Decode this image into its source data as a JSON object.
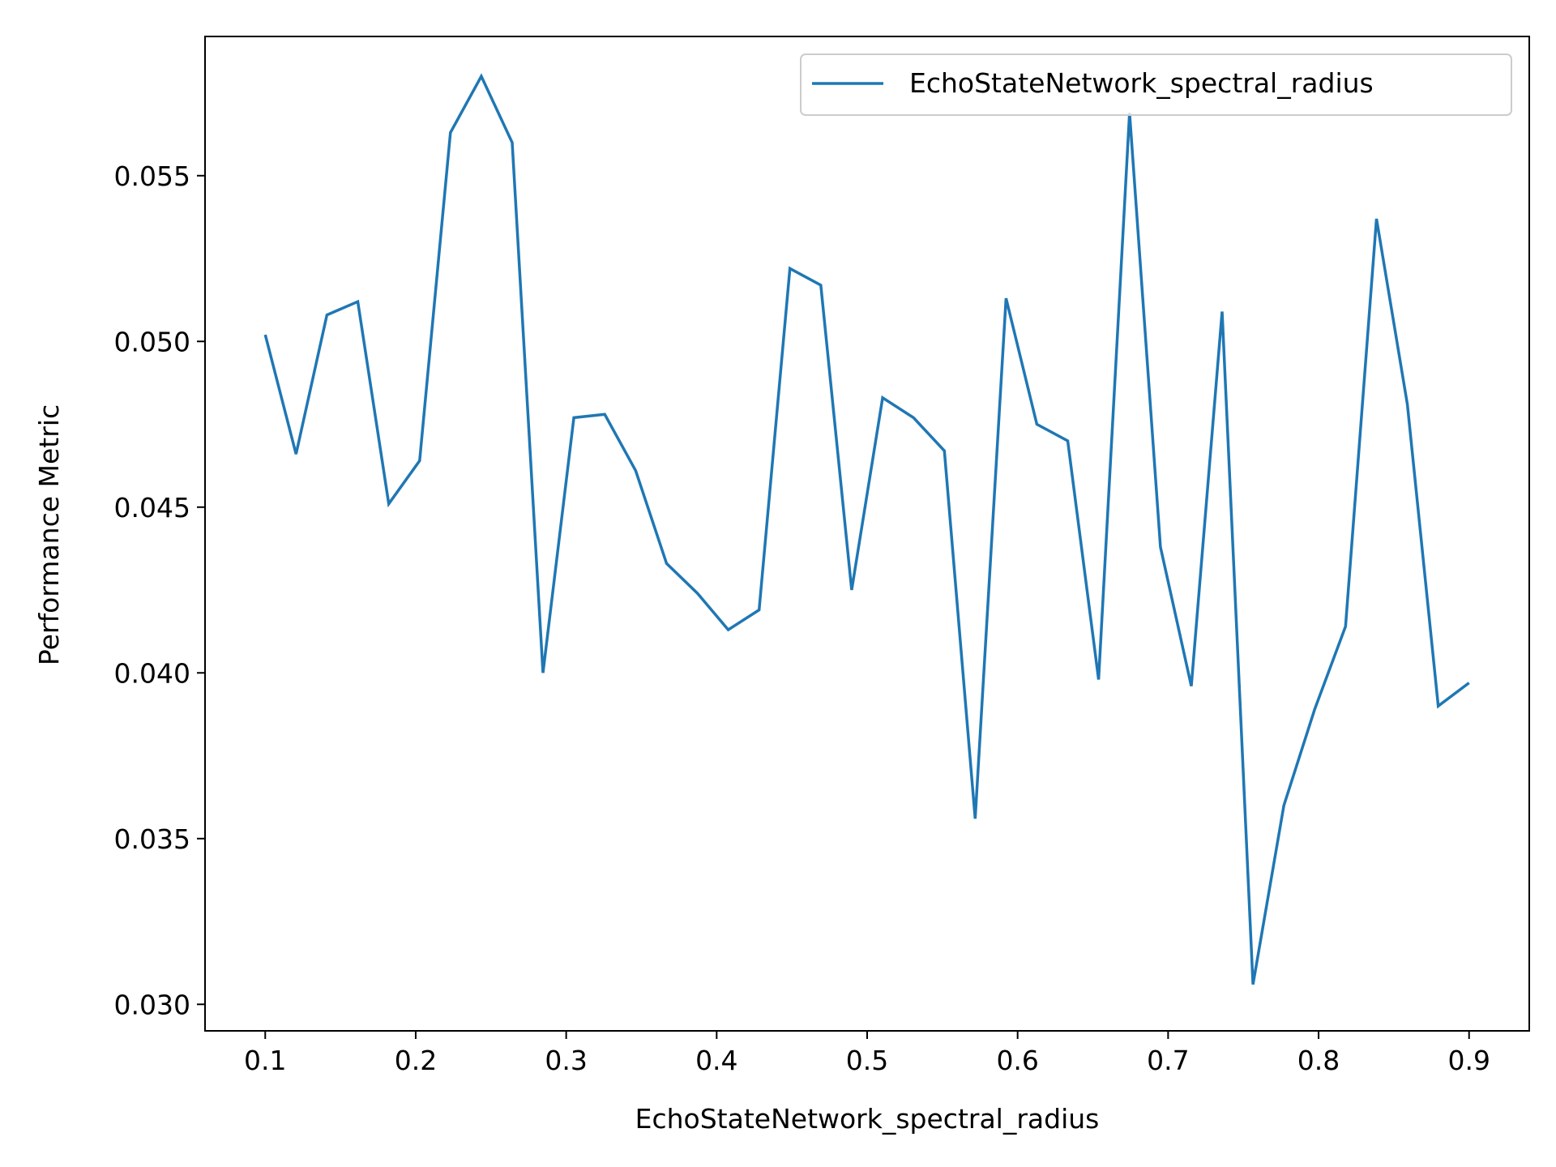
{
  "chart_data": {
    "type": "line",
    "title": "",
    "xlabel": "EchoStateNetwork_spectral_radius",
    "ylabel": "Performance Metric",
    "xlim": [
      0.06,
      0.94
    ],
    "ylim": [
      0.0292,
      0.0592
    ],
    "xticks": [
      0.1,
      0.2,
      0.3,
      0.4,
      0.5,
      0.6,
      0.7,
      0.8,
      0.9
    ],
    "xtick_labels": [
      "0.1",
      "0.2",
      "0.3",
      "0.4",
      "0.5",
      "0.6",
      "0.7",
      "0.8",
      "0.9"
    ],
    "yticks": [
      0.03,
      0.035,
      0.04,
      0.045,
      0.05,
      0.055
    ],
    "ytick_labels": [
      "0.030",
      "0.035",
      "0.040",
      "0.045",
      "0.050",
      "0.055"
    ],
    "grid": false,
    "legend": {
      "location": "top-right"
    },
    "series": [
      {
        "name": "EchoStateNetwork_spectral_radius",
        "color": "#1f77b4",
        "x": [
          0.1,
          0.1205,
          0.141,
          0.1615,
          0.1821,
          0.2026,
          0.2231,
          0.2436,
          0.2641,
          0.2846,
          0.3051,
          0.3256,
          0.3462,
          0.3667,
          0.3872,
          0.4077,
          0.4282,
          0.4487,
          0.4692,
          0.4897,
          0.5103,
          0.5308,
          0.5513,
          0.5718,
          0.5923,
          0.6128,
          0.6333,
          0.6538,
          0.6744,
          0.6949,
          0.7154,
          0.7359,
          0.7564,
          0.7769,
          0.7974,
          0.8179,
          0.8385,
          0.859,
          0.8795,
          0.9
        ],
        "y": [
          0.0502,
          0.0466,
          0.0508,
          0.0512,
          0.0451,
          0.0464,
          0.0563,
          0.058,
          0.056,
          0.04,
          0.0477,
          0.0478,
          0.0461,
          0.0433,
          0.0424,
          0.0413,
          0.0419,
          0.0522,
          0.0517,
          0.0425,
          0.0483,
          0.0477,
          0.0467,
          0.0356,
          0.0513,
          0.0475,
          0.047,
          0.0398,
          0.0569,
          0.0438,
          0.0396,
          0.0509,
          0.0306,
          0.036,
          0.0389,
          0.0414,
          0.0537,
          0.0481,
          0.039,
          0.0397
        ]
      }
    ]
  }
}
